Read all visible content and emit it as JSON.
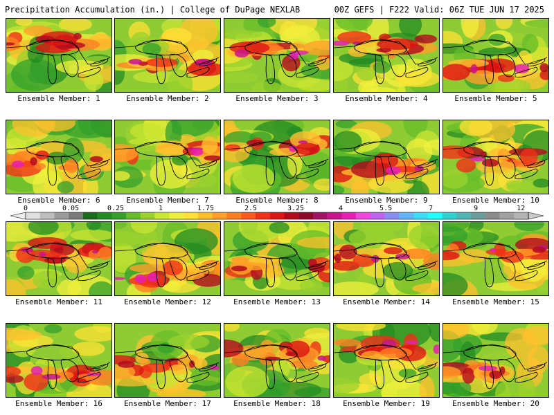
{
  "header": {
    "left_title": "Precipitation Accumulation (in.) | College of DuPage NEXLAB",
    "right_title": "00Z GEFS | F222 Valid: 06Z TUE JUN 17 2025"
  },
  "colorbar": {
    "tick_labels": [
      "0",
      "0.05",
      "0.25",
      "1",
      "1.75",
      "2.5",
      "3.25",
      "4",
      "5.5",
      "7",
      "9",
      "12"
    ],
    "colors": [
      "#e0e0e0",
      "#bdbdbd",
      "#9b9b9b",
      "#7a7a7a",
      "#1c6b1c",
      "#238b23",
      "#33a02c",
      "#66bd2a",
      "#99d12e",
      "#c8e632",
      "#f0f03c",
      "#ffe135",
      "#ffc02e",
      "#ffa028",
      "#ff7f22",
      "#ff5a1c",
      "#f03018",
      "#dc1414",
      "#b40a1e",
      "#8c0a28",
      "#a01464",
      "#c8148c",
      "#e61eb4",
      "#f046dc",
      "#be64f0",
      "#8c8cf5",
      "#64b4fa",
      "#3cdcfa",
      "#1effff",
      "#32d2d2",
      "#50b4b4",
      "#6e9b9b",
      "#8c8c8c",
      "#a0a0a0",
      "#b4b4b4"
    ]
  },
  "panels": [
    {
      "label": "Ensemble Member: 1"
    },
    {
      "label": "Ensemble Member: 2"
    },
    {
      "label": "Ensemble Member: 3"
    },
    {
      "label": "Ensemble Member: 4"
    },
    {
      "label": "Ensemble Member: 5"
    },
    {
      "label": "Ensemble Member: 6"
    },
    {
      "label": "Ensemble Member: 7"
    },
    {
      "label": "Ensemble Member: 8"
    },
    {
      "label": "Ensemble Member: 9"
    },
    {
      "label": "Ensemble Member: 10"
    },
    {
      "label": "Ensemble Member: 11"
    },
    {
      "label": "Ensemble Member: 12"
    },
    {
      "label": "Ensemble Member: 13"
    },
    {
      "label": "Ensemble Member: 14"
    },
    {
      "label": "Ensemble Member: 15"
    },
    {
      "label": "Ensemble Member: 16"
    },
    {
      "label": "Ensemble Member: 17"
    },
    {
      "label": "Ensemble Member: 18"
    },
    {
      "label": "Ensemble Member: 19"
    },
    {
      "label": "Ensemble Member: 20"
    }
  ]
}
